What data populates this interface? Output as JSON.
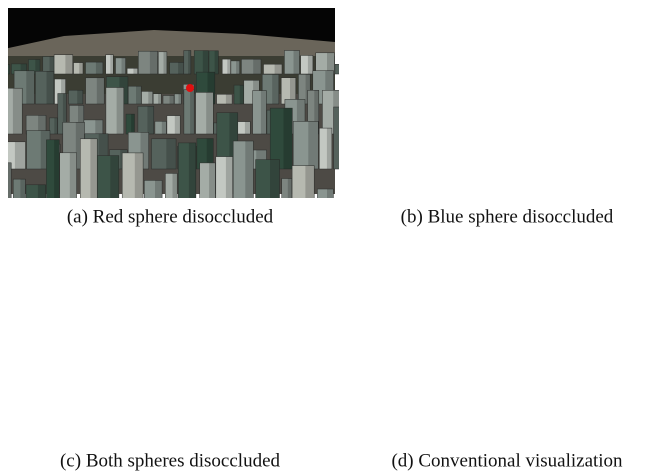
{
  "figure": {
    "panels": [
      {
        "caption": "(a) Red sphere disoccluded"
      },
      {
        "caption": "(b) Blue sphere disoccluded"
      },
      {
        "caption": "(c) Both spheres disoccluded"
      },
      {
        "caption": "(d) Conventional visualization"
      }
    ]
  }
}
